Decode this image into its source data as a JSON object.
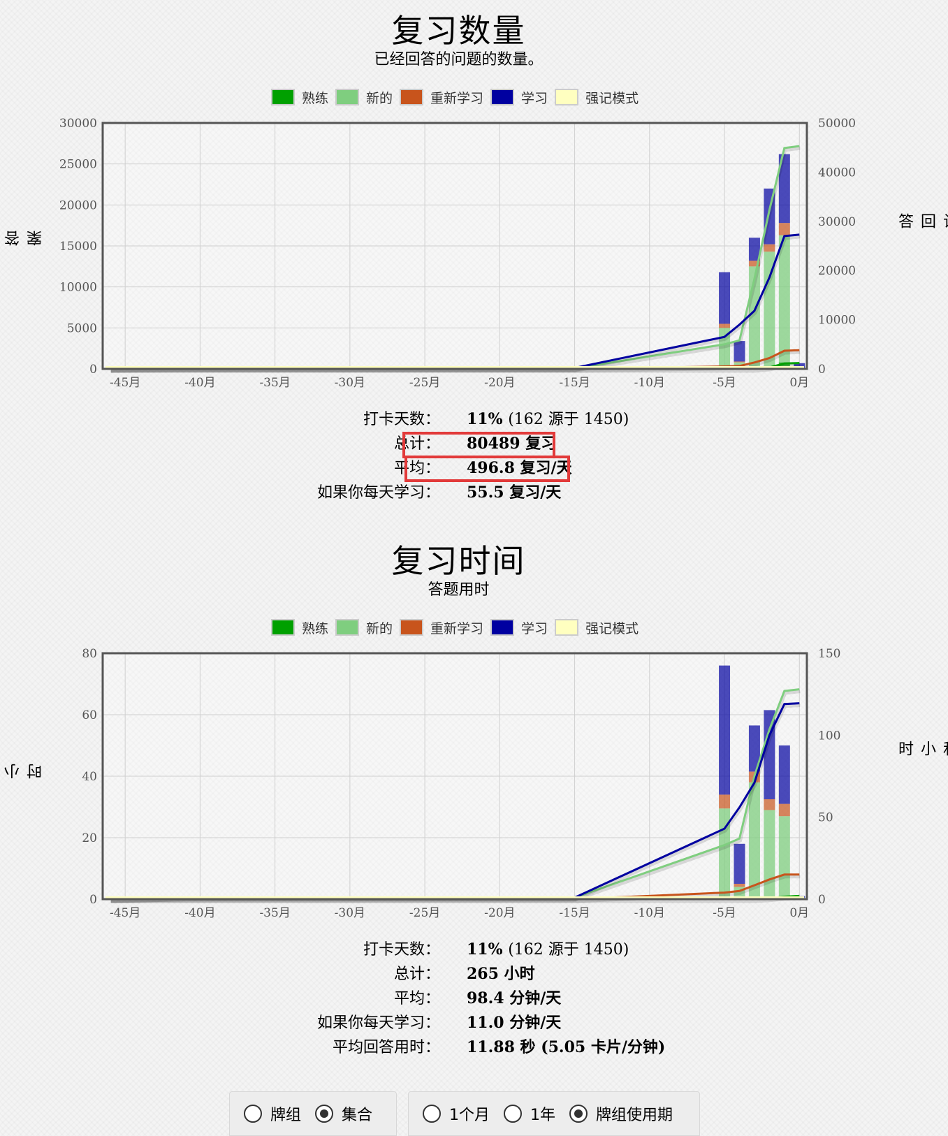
{
  "legend": [
    {
      "label": "熟练",
      "color": "#00a000"
    },
    {
      "label": "新的",
      "color": "#7fce7f"
    },
    {
      "label": "重新学习",
      "color": "#c8541c"
    },
    {
      "label": "学习",
      "color": "#0000a0"
    },
    {
      "label": "强记模式",
      "color": "#ffffc0"
    }
  ],
  "reviews": {
    "title": "复习数量",
    "subtitle": "已经回答的问题的数量。",
    "ylabel_left": "答案",
    "ylabel_right": "累计回答",
    "stats": [
      {
        "label": "打卡天数：",
        "value": "11%",
        "extra": "(162 源于 1450)"
      },
      {
        "label": "总计：",
        "value": "80489 复习",
        "extra": ""
      },
      {
        "label": "平均：",
        "value": "496.8 复习/天",
        "extra": ""
      },
      {
        "label": "如果你每天学习：",
        "value": "55.5 复习/天",
        "extra": ""
      }
    ]
  },
  "time": {
    "title": "复习时间",
    "subtitle": "答题用时",
    "ylabel_left": "小时",
    "ylabel_right": "总和 小时",
    "stats": [
      {
        "label": "打卡天数：",
        "value": "11%",
        "extra": "(162 源于 1450)"
      },
      {
        "label": "总计：",
        "value": "265 小时",
        "extra": ""
      },
      {
        "label": "平均：",
        "value": "98.4 分钟/天",
        "extra": ""
      },
      {
        "label": "如果你每天学习：",
        "value": "11.0 分钟/天",
        "extra": ""
      },
      {
        "label": "平均回答用时：",
        "value": "11.88 秒 (5.05 卡片/分钟)",
        "extra": ""
      }
    ]
  },
  "controls": {
    "scope": [
      {
        "label": "牌组",
        "selected": false
      },
      {
        "label": "集合",
        "selected": true
      }
    ],
    "period": [
      {
        "label": "1个月",
        "selected": false
      },
      {
        "label": "1年",
        "selected": false
      },
      {
        "label": "牌组使用期",
        "selected": true
      }
    ]
  },
  "chart_data": [
    {
      "type": "bar",
      "title": "复习数量",
      "subtitle": "已经回答的问题的数量。",
      "xlabel": "",
      "ylabel": "答案",
      "y2label": "累计回答",
      "x_ticks": [
        "-45月",
        "-40月",
        "-35月",
        "-30月",
        "-25月",
        "-20月",
        "-15月",
        "-10月",
        "-5月",
        "0月"
      ],
      "xlim": [
        -46.5,
        0.5
      ],
      "ylim": [
        0,
        30000
      ],
      "y_ticks": [
        0,
        5000,
        10000,
        15000,
        20000,
        25000,
        30000
      ],
      "y2lim": [
        0,
        50000
      ],
      "y2_ticks": [
        0,
        10000,
        20000,
        30000,
        40000,
        50000
      ],
      "stacked": true,
      "bar_x": [
        -5,
        -4,
        -3,
        -2,
        -1,
        0
      ],
      "series": [
        {
          "name": "熟练",
          "values": [
            0,
            0,
            0,
            300,
            800,
            0
          ]
        },
        {
          "name": "新的",
          "values": [
            5000,
            800,
            12500,
            14000,
            15500,
            100
          ]
        },
        {
          "name": "重新学习",
          "values": [
            500,
            100,
            700,
            900,
            1500,
            0
          ]
        },
        {
          "name": "学习",
          "values": [
            6300,
            2500,
            2800,
            6800,
            8400,
            600
          ]
        },
        {
          "name": "强记模式",
          "values": [
            0,
            0,
            0,
            0,
            0,
            0
          ]
        }
      ],
      "cumulative": [
        {
          "name": "新的",
          "x": [
            -46,
            -41,
            -15,
            -5,
            -4,
            -3,
            -2,
            -1,
            0
          ],
          "y": [
            0,
            100,
            100,
            5000,
            5800,
            18300,
            32300,
            44900,
            45300
          ]
        },
        {
          "name": "学习",
          "x": [
            -46,
            -41,
            -15,
            -5,
            -4,
            -3,
            -2,
            -1,
            0
          ],
          "y": [
            0,
            200,
            200,
            6500,
            9000,
            11800,
            18600,
            27000,
            27300
          ]
        },
        {
          "name": "重新学习",
          "x": [
            -46,
            -41,
            -15,
            -5,
            -4,
            -3,
            -2,
            -1,
            0
          ],
          "y": [
            0,
            0,
            0,
            500,
            600,
            1300,
            2200,
            3700,
            3800
          ]
        },
        {
          "name": "熟练",
          "x": [
            -46,
            -41,
            -15,
            -5,
            -4,
            -3,
            -2,
            -1,
            0
          ],
          "y": [
            0,
            0,
            0,
            0,
            0,
            0,
            300,
            1100,
            1200
          ]
        }
      ],
      "grid": true,
      "legend_position": "top"
    },
    {
      "type": "bar",
      "title": "复习时间",
      "subtitle": "答题用时",
      "xlabel": "",
      "ylabel": "小时",
      "y2label": "总和 小时",
      "x_ticks": [
        "-45月",
        "-40月",
        "-35月",
        "-30月",
        "-25月",
        "-20月",
        "-15月",
        "-10月",
        "-5月",
        "0月"
      ],
      "xlim": [
        -46.5,
        0.5
      ],
      "ylim": [
        0,
        80
      ],
      "y_ticks": [
        0,
        20,
        40,
        60,
        80
      ],
      "y2lim": [
        0,
        150
      ],
      "y2_ticks": [
        0,
        50,
        100,
        150
      ],
      "stacked": true,
      "bar_x": [
        -5,
        -4,
        -3,
        -2,
        -1,
        0
      ],
      "series": [
        {
          "name": "熟练",
          "values": [
            0,
            0,
            0,
            0.5,
            1,
            0
          ]
        },
        {
          "name": "新的",
          "values": [
            29.5,
            4,
            38,
            28.5,
            26,
            0.5
          ]
        },
        {
          "name": "重新学习",
          "values": [
            4.5,
            1,
            3.5,
            3.5,
            4,
            0
          ]
        },
        {
          "name": "学习",
          "values": [
            42,
            13,
            15,
            29,
            19,
            0.5
          ]
        },
        {
          "name": "强记模式",
          "values": [
            0,
            0,
            0,
            0,
            0,
            0
          ]
        }
      ],
      "cumulative": [
        {
          "name": "新的",
          "x": [
            -46,
            -41,
            -15,
            -5,
            -4,
            -3,
            -2,
            -1,
            0
          ],
          "y": [
            0,
            1,
            1,
            33,
            37,
            75,
            103.5,
            127,
            128
          ]
        },
        {
          "name": "学习",
          "x": [
            -46,
            -41,
            -15,
            -5,
            -4,
            -3,
            -2,
            -1,
            0
          ],
          "y": [
            0,
            1,
            1,
            43,
            56,
            71,
            100,
            119,
            119.5
          ]
        },
        {
          "name": "重新学习",
          "x": [
            -46,
            -41,
            -15,
            -5,
            -4,
            -3,
            -2,
            -1,
            0
          ],
          "y": [
            0,
            0,
            0,
            4,
            5,
            8.5,
            12,
            15,
            15
          ]
        },
        {
          "name": "熟练",
          "x": [
            -46,
            -41,
            -15,
            -5,
            -4,
            -3,
            -2,
            -1,
            0
          ],
          "y": [
            0,
            0,
            0,
            0,
            0,
            0,
            0.5,
            1.5,
            2
          ]
        }
      ],
      "grid": true,
      "legend_position": "top"
    }
  ]
}
